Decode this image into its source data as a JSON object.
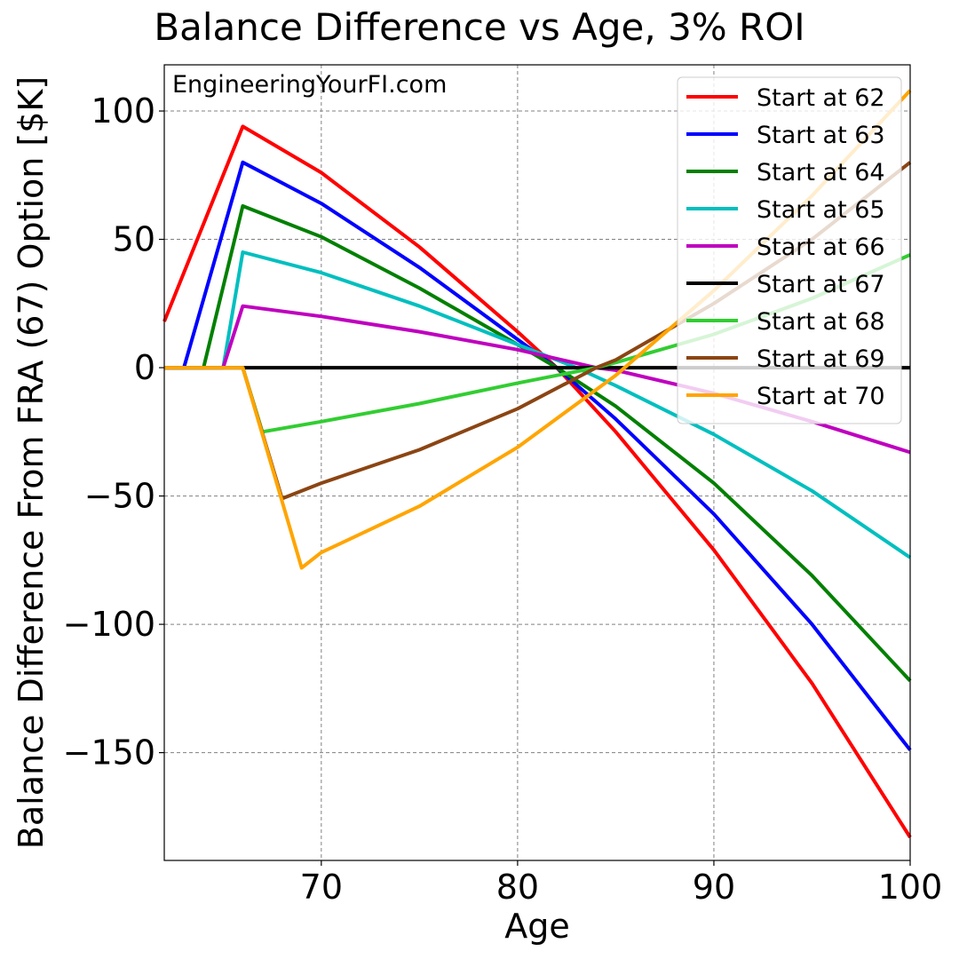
{
  "chart_data": {
    "type": "line",
    "title": "Balance Difference vs Age, 3% ROI",
    "xlabel": "Age",
    "ylabel": "Balance Difference From FRA (67) Option [$K]",
    "xlim": [
      62,
      100
    ],
    "ylim": [
      -192,
      118
    ],
    "xticks": [
      70,
      80,
      90,
      100
    ],
    "yticks": [
      100,
      50,
      0,
      -50,
      -100,
      -150
    ],
    "grid": true,
    "legend_position": "top-right",
    "annotation": "EngineeringYourFI.com",
    "series": [
      {
        "name": "Start at 62",
        "color": "#ff0000",
        "x": [
          62,
          66,
          70,
          75,
          80,
          82,
          85,
          90,
          95,
          100
        ],
        "y": [
          18,
          94,
          76,
          47,
          14,
          0,
          -25,
          -71,
          -123,
          -183
        ]
      },
      {
        "name": "Start at 63",
        "color": "#0000ff",
        "x": [
          62,
          63,
          66,
          70,
          75,
          80,
          82,
          85,
          90,
          95,
          100
        ],
        "y": [
          0,
          0,
          80,
          64,
          39,
          11,
          0,
          -20,
          -57,
          -100,
          -149
        ]
      },
      {
        "name": "Start at 64",
        "color": "#008000",
        "x": [
          62,
          63,
          64,
          66,
          70,
          75,
          80,
          82,
          85,
          90,
          95,
          100
        ],
        "y": [
          0,
          0,
          0,
          63,
          51,
          31,
          9,
          0,
          -15,
          -45,
          -81,
          -122
        ]
      },
      {
        "name": "Start at 65",
        "color": "#00bfbf",
        "x": [
          62,
          64,
          65,
          66,
          70,
          75,
          80,
          83,
          85,
          90,
          95,
          100
        ],
        "y": [
          0,
          0,
          0,
          45,
          37,
          24,
          9,
          0,
          -7,
          -26,
          -48,
          -74
        ]
      },
      {
        "name": "Start at 66",
        "color": "#bf00bf",
        "x": [
          62,
          65,
          66,
          70,
          75,
          80,
          84,
          85,
          90,
          95,
          100
        ],
        "y": [
          0,
          0,
          24,
          20,
          14,
          7,
          0,
          -1,
          -10,
          -21,
          -33
        ]
      },
      {
        "name": "Start at 67",
        "color": "#000000",
        "x": [
          62,
          100
        ],
        "y": [
          0,
          0
        ]
      },
      {
        "name": "Start at 68",
        "color": "#32cd32",
        "x": [
          62,
          66,
          67,
          70,
          75,
          80,
          84,
          85,
          90,
          95,
          100
        ],
        "y": [
          0,
          0,
          -25,
          -21,
          -14,
          -6,
          0,
          2,
          13,
          27,
          44
        ]
      },
      {
        "name": "Start at 69",
        "color": "#8b4513",
        "x": [
          62,
          66,
          68,
          70,
          75,
          80,
          84,
          85,
          90,
          95,
          100
        ],
        "y": [
          0,
          0,
          -51,
          -45,
          -32,
          -16,
          0,
          3,
          25,
          50,
          80
        ]
      },
      {
        "name": "Start at 70",
        "color": "#ffa500",
        "x": [
          62,
          66,
          69,
          70,
          75,
          80,
          85,
          90,
          95,
          100
        ],
        "y": [
          0,
          0,
          -78,
          -72,
          -54,
          -31,
          -3,
          30,
          67,
          108
        ]
      }
    ]
  }
}
